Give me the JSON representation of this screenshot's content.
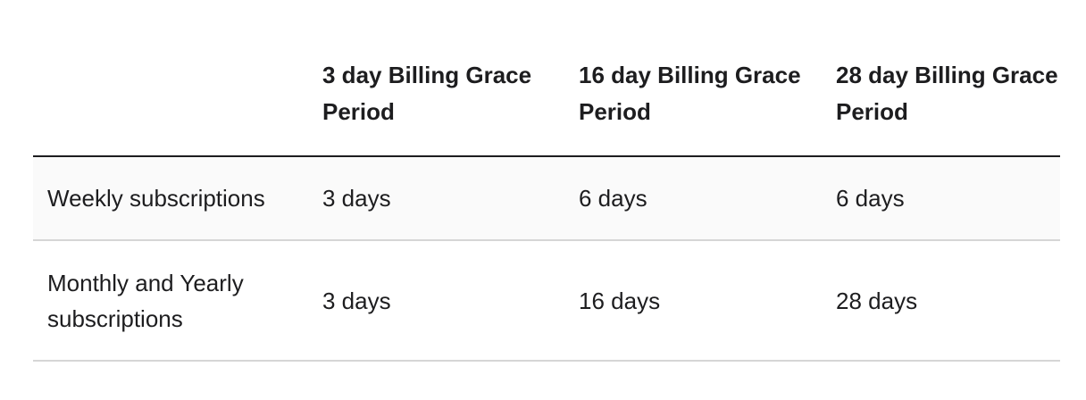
{
  "table": {
    "headers": [
      "",
      "3 day Billing Grace Period",
      "16 day Billing Grace Period",
      "28 day Billing Grace Period"
    ],
    "rows": [
      [
        "Weekly subscriptions",
        "3 days",
        "6 days",
        "6 days"
      ],
      [
        "Monthly and Yearly subscriptions",
        "3 days",
        "16 days",
        "28 days"
      ]
    ]
  }
}
